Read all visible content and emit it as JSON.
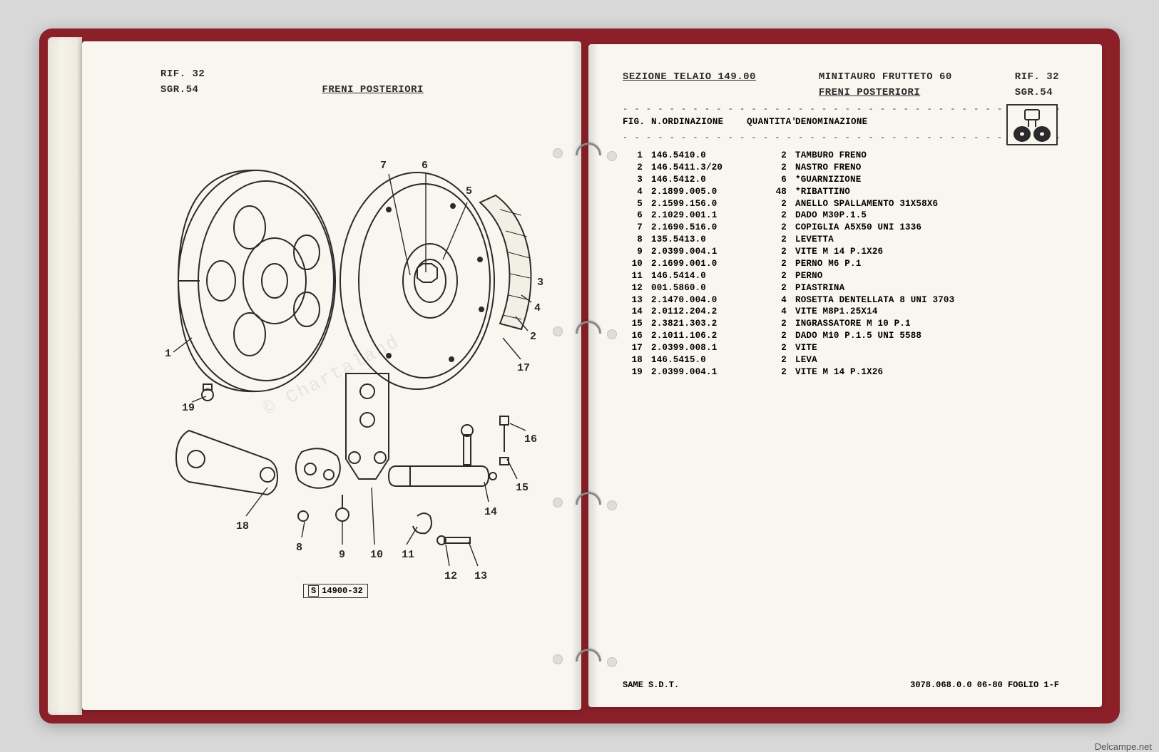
{
  "colors": {
    "binder": "#8b2028",
    "page": "#f8f6ef",
    "ink": "#2a2a2a",
    "background": "#d8d8d8"
  },
  "left": {
    "rif": "RIF.  32",
    "sgr": "SGR.54",
    "title": "FRENI POSTERIORI",
    "diagram_ref_prefix": "S",
    "diagram_ref": "14900-32",
    "callouts": [
      "1",
      "2",
      "3",
      "4",
      "5",
      "6",
      "7",
      "8",
      "9",
      "10",
      "11",
      "12",
      "13",
      "14",
      "15",
      "16",
      "17",
      "18",
      "19"
    ]
  },
  "right": {
    "section": "SEZIONE TELAIO 149.00",
    "model": "MINITAURO FRUTTETO 60",
    "rif": "RIF. 32",
    "subtitle": "FRENI POSTERIORI",
    "sgr": "SGR.54",
    "columns": {
      "fig": "FIG.",
      "ord": "N.ORDINAZIONE",
      "qty": "QUANTITA'",
      "desc": "DENOMINAZIONE"
    },
    "rows": [
      {
        "fig": "1",
        "ord": "146.5410.0",
        "qty": "2",
        "desc": "TAMBURO FRENO"
      },
      {
        "fig": "2",
        "ord": "146.5411.3/20",
        "qty": "2",
        "desc": "NASTRO FRENO"
      },
      {
        "fig": "3",
        "ord": "146.5412.0",
        "qty": "6",
        "desc": "*GUARNIZIONE"
      },
      {
        "fig": "4",
        "ord": "2.1899.005.0",
        "qty": "48",
        "desc": "*RIBATTINO"
      },
      {
        "fig": "5",
        "ord": "2.1599.156.0",
        "qty": "2",
        "desc": "ANELLO SPALLAMENTO 31X58X6"
      },
      {
        "fig": "6",
        "ord": "2.1029.001.1",
        "qty": "2",
        "desc": "DADO M30P.1.5"
      },
      {
        "fig": "7",
        "ord": "2.1690.516.0",
        "qty": "2",
        "desc": "COPIGLIA A5X50 UNI 1336"
      },
      {
        "fig": "8",
        "ord": "135.5413.0",
        "qty": "2",
        "desc": "LEVETTA"
      },
      {
        "fig": "9",
        "ord": "2.0399.004.1",
        "qty": "2",
        "desc": "VITE M 14 P.1X26"
      },
      {
        "fig": "10",
        "ord": "2.1699.001.0",
        "qty": "2",
        "desc": "PERNO M6 P.1"
      },
      {
        "fig": "11",
        "ord": "146.5414.0",
        "qty": "2",
        "desc": "PERNO"
      },
      {
        "fig": "12",
        "ord": "001.5860.0",
        "qty": "2",
        "desc": "PIASTRINA"
      },
      {
        "fig": "13",
        "ord": "2.1470.004.0",
        "qty": "4",
        "desc": "ROSETTA DENTELLATA 8 UNI 3703"
      },
      {
        "fig": "14",
        "ord": "2.0112.204.2",
        "qty": "4",
        "desc": "VITE M8P1.25X14"
      },
      {
        "fig": "15",
        "ord": "2.3821.303.2",
        "qty": "2",
        "desc": "INGRASSATORE M 10 P.1"
      },
      {
        "fig": "16",
        "ord": "2.1011.106.2",
        "qty": "2",
        "desc": "DADO M10 P.1.5 UNI 5588"
      },
      {
        "fig": "17",
        "ord": "2.0399.008.1",
        "qty": "2",
        "desc": "VITE"
      },
      {
        "fig": "18",
        "ord": "146.5415.0",
        "qty": "2",
        "desc": "LEVA"
      },
      {
        "fig": "19",
        "ord": "2.0399.004.1",
        "qty": "2",
        "desc": "VITE M 14 P.1X26"
      }
    ],
    "footer_left": "SAME  S.D.T.",
    "footer_right": "3078.068.0.0 06-80 FOGLIO  1-F"
  },
  "watermark": "© Chartaland",
  "site_badge": "Delcampe.net"
}
